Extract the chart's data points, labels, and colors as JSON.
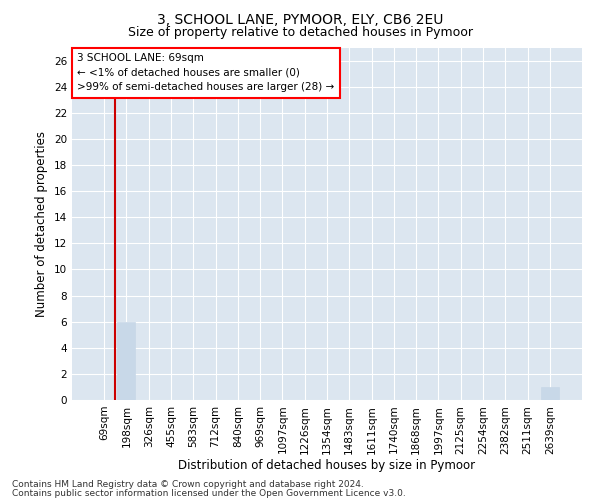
{
  "title": "3, SCHOOL LANE, PYMOOR, ELY, CB6 2EU",
  "subtitle": "Size of property relative to detached houses in Pymoor",
  "xlabel": "Distribution of detached houses by size in Pymoor",
  "ylabel": "Number of detached properties",
  "categories": [
    "69sqm",
    "198sqm",
    "326sqm",
    "455sqm",
    "583sqm",
    "712sqm",
    "840sqm",
    "969sqm",
    "1097sqm",
    "1226sqm",
    "1354sqm",
    "1483sqm",
    "1611sqm",
    "1740sqm",
    "1868sqm",
    "1997sqm",
    "2125sqm",
    "2254sqm",
    "2382sqm",
    "2511sqm",
    "2639sqm"
  ],
  "values": [
    0,
    6,
    0,
    0,
    0,
    0,
    0,
    0,
    0,
    0,
    0,
    0,
    0,
    0,
    0,
    0,
    0,
    0,
    0,
    0,
    1
  ],
  "bar_color": "#c8d8e8",
  "subject_line_color": "#cc0000",
  "ylim": [
    0,
    27
  ],
  "yticks": [
    0,
    2,
    4,
    6,
    8,
    10,
    12,
    14,
    16,
    18,
    20,
    22,
    24,
    26
  ],
  "annotation_line1": "3 SCHOOL LANE: 69sqm",
  "annotation_line2": "← <1% of detached houses are smaller (0)",
  "annotation_line3": ">99% of semi-detached houses are larger (28) →",
  "footer_line1": "Contains HM Land Registry data © Crown copyright and database right 2024.",
  "footer_line2": "Contains public sector information licensed under the Open Government Licence v3.0.",
  "background_color": "#dce6f0",
  "grid_color": "#ffffff",
  "title_fontsize": 10,
  "subtitle_fontsize": 9,
  "axis_label_fontsize": 8.5,
  "tick_fontsize": 7.5,
  "annotation_fontsize": 7.5,
  "footer_fontsize": 6.5
}
